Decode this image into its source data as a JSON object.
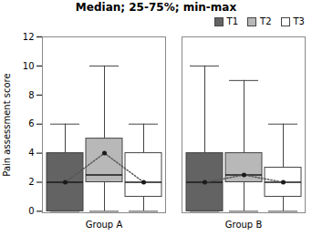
{
  "chart_data": {
    "type": "box",
    "title": "Median; 25-75%; min-max",
    "ylabel": "Pain assessment score",
    "categories": [
      "Group A",
      "Group B"
    ],
    "series": [
      {
        "name": "T1",
        "color": "#636363",
        "median": [
          2.0,
          2.0
        ],
        "q1": [
          0.0,
          0.0
        ],
        "q3": [
          4.0,
          4.0
        ],
        "min": [
          0.0,
          0.0
        ],
        "max": [
          6.0,
          10.0
        ],
        "mean": [
          2.0,
          2.0
        ]
      },
      {
        "name": "T2",
        "color": "#b8b8b8",
        "median": [
          2.5,
          2.5
        ],
        "q1": [
          2.0,
          2.0
        ],
        "q3": [
          5.0,
          4.0
        ],
        "min": [
          0.0,
          0.0
        ],
        "max": [
          10.0,
          9.0
        ],
        "mean": [
          4.0,
          2.5
        ]
      },
      {
        "name": "T3",
        "color": "#ffffff",
        "median": [
          2.0,
          2.0
        ],
        "q1": [
          1.0,
          1.0
        ],
        "q3": [
          4.0,
          3.0
        ],
        "min": [
          0.0,
          0.0
        ],
        "max": [
          6.0,
          6.0
        ],
        "mean": [
          2.0,
          2.0
        ]
      }
    ],
    "ylim": [
      -0.1,
      12
    ],
    "yticks": [
      0,
      2,
      4,
      6,
      8,
      10,
      12
    ],
    "legend": "upper right",
    "grid": false
  }
}
